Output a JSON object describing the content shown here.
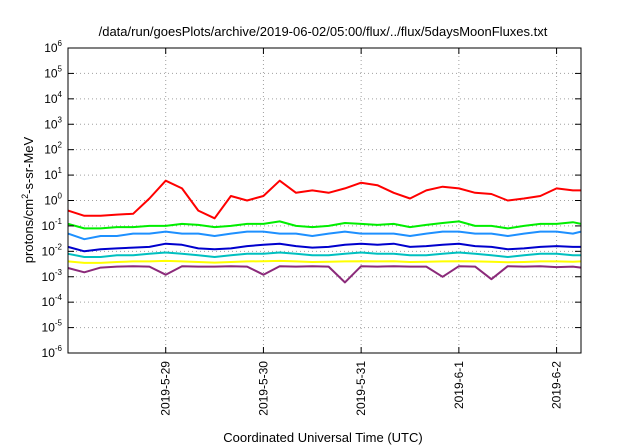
{
  "chart_data": {
    "type": "line",
    "title": "/data/run/goesPlots/archive/2019-06-02/05:00/flux/../flux/5daysMoonFluxes.txt",
    "xlabel": "Coordinated Universal Time (UTC)",
    "ylabel": {
      "prefix": "protons/cm",
      "sup": "2",
      "suffix": "-s-sr-MeV"
    },
    "yscale": "log",
    "ylim": [
      1e-06,
      1000000
    ],
    "xlim": [
      "2019-05-28",
      "2019-06-02 06:00"
    ],
    "grid": true,
    "x_ticks": [
      {
        "x": "2019-05-29",
        "label": "2019-5-29"
      },
      {
        "x": "2019-05-30",
        "label": "2019-5-30"
      },
      {
        "x": "2019-05-31",
        "label": "2019-5-31"
      },
      {
        "x": "2019-06-01",
        "label": "2019-6-1"
      },
      {
        "x": "2019-06-02",
        "label": "2019-6-2"
      }
    ],
    "y_ticks": [
      {
        "base": "10",
        "exp": "-6",
        "value": 1e-06
      },
      {
        "base": "10",
        "exp": "-5",
        "value": 1e-05
      },
      {
        "base": "10",
        "exp": "-4",
        "value": 0.0001
      },
      {
        "base": "10",
        "exp": "-3",
        "value": 0.001
      },
      {
        "base": "10",
        "exp": "-2",
        "value": 0.01
      },
      {
        "base": "10",
        "exp": "-1",
        "value": 0.1
      },
      {
        "base": "10",
        "exp": "0",
        "value": 1
      },
      {
        "base": "10",
        "exp": "1",
        "value": 10
      },
      {
        "base": "10",
        "exp": "2",
        "value": 100
      },
      {
        "base": "10",
        "exp": "3",
        "value": 1000
      },
      {
        "base": "10",
        "exp": "4",
        "value": 10000
      },
      {
        "base": "10",
        "exp": "5",
        "value": 100000
      },
      {
        "base": "10",
        "exp": "6",
        "value": 1000000
      }
    ],
    "x": [
      "2019-05-28 00:00",
      "2019-05-28 04:00",
      "2019-05-28 08:00",
      "2019-05-28 12:00",
      "2019-05-28 16:00",
      "2019-05-28 20:00",
      "2019-05-29 00:00",
      "2019-05-29 04:00",
      "2019-05-29 08:00",
      "2019-05-29 12:00",
      "2019-05-29 16:00",
      "2019-05-29 20:00",
      "2019-05-30 00:00",
      "2019-05-30 04:00",
      "2019-05-30 08:00",
      "2019-05-30 12:00",
      "2019-05-30 16:00",
      "2019-05-30 20:00",
      "2019-05-31 00:00",
      "2019-05-31 04:00",
      "2019-05-31 08:00",
      "2019-05-31 12:00",
      "2019-05-31 16:00",
      "2019-05-31 20:00",
      "2019-06-01 00:00",
      "2019-06-01 04:00",
      "2019-06-01 08:00",
      "2019-06-01 12:00",
      "2019-06-01 16:00",
      "2019-06-01 20:00",
      "2019-06-02 00:00",
      "2019-06-02 04:00",
      "2019-06-02 06:00"
    ],
    "series": [
      {
        "color": "#ff0000",
        "values": [
          0.4,
          0.25,
          0.25,
          0.28,
          0.3,
          1.2,
          6.0,
          3.0,
          0.4,
          0.2,
          1.5,
          1.0,
          1.5,
          6.0,
          2.0,
          2.5,
          2.0,
          3.0,
          5.0,
          4.0,
          2.0,
          1.2,
          2.5,
          3.5,
          3.0,
          2.0,
          1.8,
          1.0,
          1.2,
          1.5,
          3.0,
          2.5,
          2.5
        ]
      },
      {
        "color": "#00ee00",
        "values": [
          0.12,
          0.08,
          0.08,
          0.09,
          0.09,
          0.1,
          0.1,
          0.12,
          0.11,
          0.09,
          0.1,
          0.12,
          0.12,
          0.15,
          0.1,
          0.09,
          0.1,
          0.13,
          0.12,
          0.11,
          0.12,
          0.09,
          0.11,
          0.13,
          0.15,
          0.1,
          0.1,
          0.08,
          0.1,
          0.12,
          0.12,
          0.14,
          0.12
        ]
      },
      {
        "color": "#1e90ff",
        "values": [
          0.05,
          0.03,
          0.04,
          0.04,
          0.05,
          0.05,
          0.06,
          0.05,
          0.05,
          0.04,
          0.05,
          0.06,
          0.06,
          0.05,
          0.05,
          0.04,
          0.05,
          0.06,
          0.05,
          0.05,
          0.05,
          0.04,
          0.05,
          0.06,
          0.06,
          0.05,
          0.05,
          0.04,
          0.05,
          0.06,
          0.06,
          0.05,
          0.06
        ]
      },
      {
        "color": "#0000cd",
        "values": [
          0.015,
          0.01,
          0.012,
          0.013,
          0.014,
          0.015,
          0.02,
          0.018,
          0.013,
          0.012,
          0.013,
          0.016,
          0.018,
          0.02,
          0.016,
          0.014,
          0.015,
          0.018,
          0.02,
          0.018,
          0.02,
          0.015,
          0.016,
          0.018,
          0.02,
          0.016,
          0.015,
          0.012,
          0.013,
          0.015,
          0.016,
          0.015,
          0.015
        ]
      },
      {
        "color": "#00c0c0",
        "values": [
          0.008,
          0.006,
          0.006,
          0.007,
          0.007,
          0.008,
          0.009,
          0.008,
          0.007,
          0.006,
          0.007,
          0.008,
          0.008,
          0.009,
          0.008,
          0.007,
          0.007,
          0.008,
          0.009,
          0.008,
          0.008,
          0.007,
          0.007,
          0.008,
          0.009,
          0.008,
          0.007,
          0.006,
          0.007,
          0.008,
          0.008,
          0.007,
          0.007
        ]
      },
      {
        "color": "#ffff00",
        "values": [
          0.004,
          0.0035,
          0.0035,
          0.0038,
          0.004,
          0.004,
          0.0042,
          0.004,
          0.0038,
          0.0036,
          0.0038,
          0.004,
          0.0041,
          0.0042,
          0.004,
          0.0038,
          0.0039,
          0.004,
          0.0041,
          0.004,
          0.0041,
          0.0038,
          0.0039,
          0.004,
          0.0041,
          0.004,
          0.0039,
          0.0037,
          0.0038,
          0.004,
          0.004,
          0.0039,
          0.004
        ]
      },
      {
        "color": "#8b2a7a",
        "values": [
          0.0022,
          0.0015,
          0.0023,
          0.0025,
          0.0026,
          0.0025,
          0.0012,
          0.0026,
          0.0025,
          0.0025,
          0.0026,
          0.0025,
          0.0012,
          0.0026,
          0.0025,
          0.0026,
          0.0025,
          0.0006,
          0.0026,
          0.0025,
          0.0026,
          0.0025,
          0.0025,
          0.001,
          0.0026,
          0.0025,
          0.0008,
          0.0026,
          0.0025,
          0.0026,
          0.0024,
          0.0025,
          0.0023
        ]
      }
    ]
  }
}
